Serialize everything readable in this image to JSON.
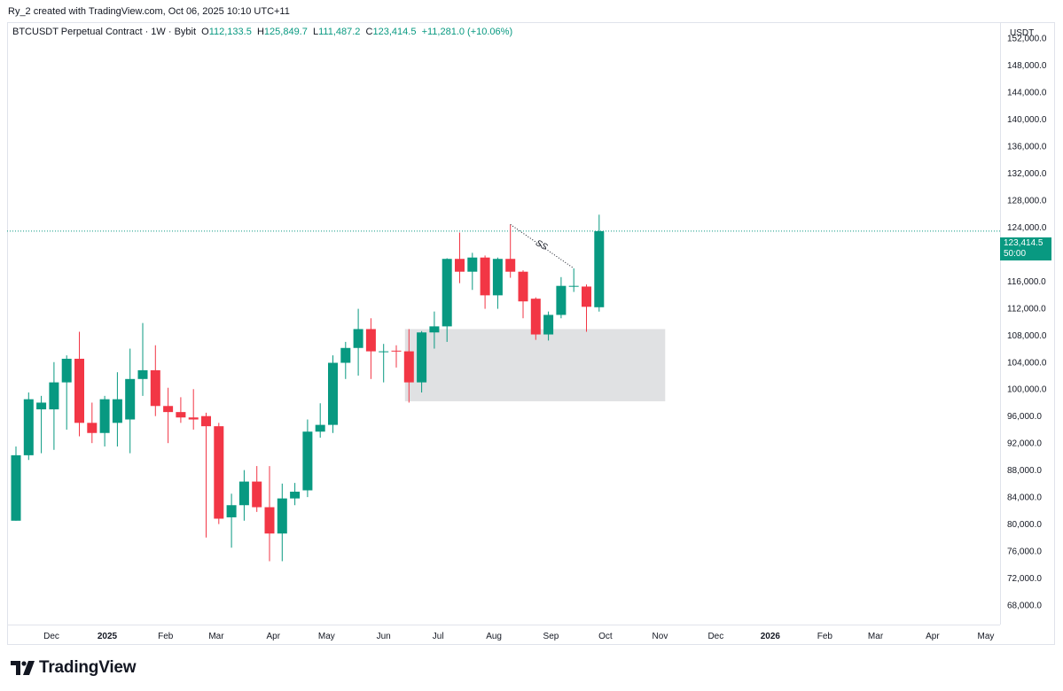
{
  "caption": "Ry_2 created with TradingView.com, Oct 06, 2025 10:10 UTC+11",
  "legend": {
    "symbol": "BTCUSDT Perpetual Contract · 1W · Bybit",
    "open_label": "O",
    "open": "112,133.5",
    "high_label": "H",
    "high": "125,849.7",
    "low_label": "L",
    "low": "111,487.2",
    "close_label": "C",
    "close": "123,414.5",
    "change": "+11,281.0 (+10.06%)"
  },
  "currency": "USDT",
  "price_tag": {
    "price": "123,414.5",
    "countdown": "50:00"
  },
  "brand": "TradingView",
  "colors": {
    "up": "#089981",
    "down": "#f23645",
    "zone": "#e0e1e3",
    "text": "#131722"
  },
  "chart_data": {
    "type": "candlestick",
    "interval": "1W",
    "y_ticks": [
      "152,000.0",
      "148,000.0",
      "144,000.0",
      "140,000.0",
      "136,000.0",
      "132,000.0",
      "128,000.0",
      "124,000.0",
      "120,000.0",
      "116,000.0",
      "112,000.0",
      "108,000.0",
      "104,000.0",
      "100,000.0",
      "96,000.0",
      "92,000.0",
      "88,000.0",
      "84,000.0",
      "80,000.0",
      "76,000.0",
      "72,000.0",
      "68,000.0"
    ],
    "ylim": [
      66000,
      155000
    ],
    "x_ticks": [
      {
        "label": "Dec",
        "bar": 2.8,
        "bold": false
      },
      {
        "label": "2025",
        "bar": 7.2,
        "bold": true
      },
      {
        "label": "Feb",
        "bar": 11.8,
        "bold": false
      },
      {
        "label": "Mar",
        "bar": 15.8,
        "bold": false
      },
      {
        "label": "Apr",
        "bar": 20.3,
        "bold": false
      },
      {
        "label": "May",
        "bar": 24.5,
        "bold": false
      },
      {
        "label": "Jun",
        "bar": 29.0,
        "bold": false
      },
      {
        "label": "Jul",
        "bar": 33.3,
        "bold": false
      },
      {
        "label": "Aug",
        "bar": 37.7,
        "bold": false
      },
      {
        "label": "Sep",
        "bar": 42.2,
        "bold": false
      },
      {
        "label": "Oct",
        "bar": 46.5,
        "bold": false
      },
      {
        "label": "Nov",
        "bar": 50.8,
        "bold": false
      },
      {
        "label": "Dec",
        "bar": 55.2,
        "bold": false
      },
      {
        "label": "2026",
        "bar": 59.5,
        "bold": true
      },
      {
        "label": "Feb",
        "bar": 63.8,
        "bold": false
      },
      {
        "label": "Mar",
        "bar": 67.8,
        "bold": false
      },
      {
        "label": "Apr",
        "bar": 72.3,
        "bold": false
      },
      {
        "label": "May",
        "bar": 76.5,
        "bold": false
      }
    ],
    "candles": [
      {
        "o": 80500,
        "h": 91500,
        "l": 80500,
        "c": 90200
      },
      {
        "o": 90200,
        "h": 99500,
        "l": 89500,
        "c": 98500
      },
      {
        "o": 97000,
        "h": 99000,
        "l": 90500,
        "c": 98000
      },
      {
        "o": 97000,
        "h": 104000,
        "l": 91000,
        "c": 101000
      },
      {
        "o": 101000,
        "h": 105000,
        "l": 94000,
        "c": 104500
      },
      {
        "o": 104500,
        "h": 108500,
        "l": 93000,
        "c": 95000
      },
      {
        "o": 95000,
        "h": 98000,
        "l": 92000,
        "c": 93500
      },
      {
        "o": 93500,
        "h": 99000,
        "l": 91500,
        "c": 98500
      },
      {
        "o": 95000,
        "h": 102500,
        "l": 91500,
        "c": 98500
      },
      {
        "o": 95500,
        "h": 106000,
        "l": 90500,
        "c": 101500
      },
      {
        "o": 101500,
        "h": 109800,
        "l": 99000,
        "c": 102800
      },
      {
        "o": 102800,
        "h": 106500,
        "l": 96000,
        "c": 97500
      },
      {
        "o": 97500,
        "h": 100200,
        "l": 92000,
        "c": 96600
      },
      {
        "o": 96600,
        "h": 98800,
        "l": 95000,
        "c": 95800
      },
      {
        "o": 95800,
        "h": 100000,
        "l": 94000,
        "c": 95500
      },
      {
        "o": 96000,
        "h": 96500,
        "l": 78000,
        "c": 94500
      },
      {
        "o": 94500,
        "h": 95000,
        "l": 80000,
        "c": 80800
      },
      {
        "o": 81000,
        "h": 84500,
        "l": 76500,
        "c": 82800
      },
      {
        "o": 82800,
        "h": 88000,
        "l": 80500,
        "c": 86300
      },
      {
        "o": 86300,
        "h": 88600,
        "l": 81800,
        "c": 82500
      },
      {
        "o": 82500,
        "h": 88600,
        "l": 74500,
        "c": 78600
      },
      {
        "o": 78600,
        "h": 86000,
        "l": 74500,
        "c": 83800
      },
      {
        "o": 83800,
        "h": 86100,
        "l": 82800,
        "c": 84800
      },
      {
        "o": 85000,
        "h": 95500,
        "l": 84000,
        "c": 93700
      },
      {
        "o": 93700,
        "h": 97900,
        "l": 92800,
        "c": 94700
      },
      {
        "o": 94700,
        "h": 105000,
        "l": 93500,
        "c": 103900
      },
      {
        "o": 103900,
        "h": 107000,
        "l": 101500,
        "c": 106100
      },
      {
        "o": 106100,
        "h": 111900,
        "l": 102000,
        "c": 108900
      },
      {
        "o": 108900,
        "h": 110500,
        "l": 101500,
        "c": 105600
      },
      {
        "o": 105600,
        "h": 106700,
        "l": 101000,
        "c": 105600
      },
      {
        "o": 105700,
        "h": 106500,
        "l": 103200,
        "c": 105600
      },
      {
        "o": 105600,
        "h": 108900,
        "l": 98000,
        "c": 101000
      },
      {
        "o": 101000,
        "h": 108600,
        "l": 99500,
        "c": 108400
      },
      {
        "o": 108400,
        "h": 111500,
        "l": 106000,
        "c": 109300
      },
      {
        "o": 109300,
        "h": 119400,
        "l": 107000,
        "c": 119300
      },
      {
        "o": 119300,
        "h": 123200,
        "l": 115700,
        "c": 117400
      },
      {
        "o": 117400,
        "h": 120200,
        "l": 114700,
        "c": 119500
      },
      {
        "o": 119500,
        "h": 119800,
        "l": 111900,
        "c": 113900
      },
      {
        "o": 113900,
        "h": 119500,
        "l": 111900,
        "c": 119300
      },
      {
        "o": 119300,
        "h": 124400,
        "l": 116500,
        "c": 117400
      },
      {
        "o": 117400,
        "h": 117600,
        "l": 110500,
        "c": 113000
      },
      {
        "o": 113400,
        "h": 113600,
        "l": 107300,
        "c": 108100
      },
      {
        "o": 108100,
        "h": 111500,
        "l": 107200,
        "c": 111000
      },
      {
        "o": 111000,
        "h": 116600,
        "l": 110500,
        "c": 115300
      },
      {
        "o": 115300,
        "h": 117900,
        "l": 114400,
        "c": 115300
      },
      {
        "o": 115200,
        "h": 115500,
        "l": 108500,
        "c": 112200
      },
      {
        "o": 112133.5,
        "h": 125849.7,
        "l": 111487.2,
        "c": 123414.5
      }
    ],
    "annotations": [
      {
        "type": "rectangle",
        "from_bar": 31,
        "to_bar": 51,
        "y_low": 98200,
        "y_high": 108900,
        "color": "#e0e1e3"
      },
      {
        "type": "dotted_line",
        "from_bar": 39,
        "from_y": 124400,
        "to_bar": 44,
        "to_y": 117900,
        "label": "SS"
      },
      {
        "type": "horizontal_price_line",
        "y": 123414.5,
        "color": "#089981"
      }
    ]
  }
}
